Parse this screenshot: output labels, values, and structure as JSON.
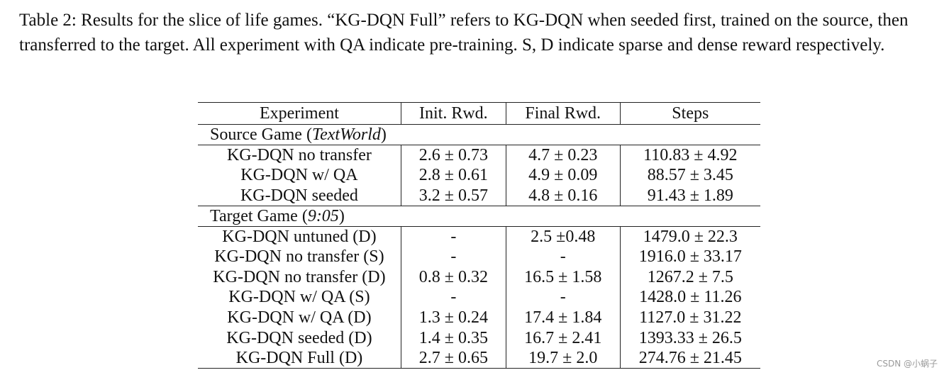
{
  "caption": "Table 2: Results for the slice of life games. “KG-DQN Full” refers to KG-DQN when seeded first, trained on the source, then transferred to the target. All experiment with QA indicate pre-training. S, D indicate sparse and dense reward respectively.",
  "table": {
    "headers": [
      "Experiment",
      "Init. Rwd.",
      "Final Rwd.",
      "Steps"
    ],
    "sections": [
      {
        "title_prefix": "Source Game (",
        "title_italic": "TextWorld",
        "title_suffix": ")",
        "rows": [
          [
            "KG-DQN no transfer",
            "2.6 ± 0.73",
            "4.7 ± 0.23",
            "110.83 ± 4.92"
          ],
          [
            "KG-DQN w/ QA",
            "2.8 ± 0.61",
            "4.9 ± 0.09",
            "88.57 ± 3.45"
          ],
          [
            "KG-DQN seeded",
            "3.2 ± 0.57",
            "4.8 ± 0.16",
            "91.43 ± 1.89"
          ]
        ]
      },
      {
        "title_prefix": "Target Game (",
        "title_italic": "9:05",
        "title_suffix": ")",
        "rows": [
          [
            "KG-DQN untuned (D)",
            "-",
            "2.5 ±0.48",
            "1479.0 ± 22.3"
          ],
          [
            "KG-DQN no transfer (S)",
            "-",
            "-",
            "1916.0 ± 33.17"
          ],
          [
            "KG-DQN no transfer (D)",
            "0.8 ± 0.32",
            "16.5 ± 1.58",
            "1267.2 ± 7.5"
          ],
          [
            "KG-DQN w/ QA (S)",
            "-",
            "-",
            "1428.0 ± 11.26"
          ],
          [
            "KG-DQN w/ QA (D)",
            "1.3 ± 0.24",
            "17.4 ± 1.84",
            "1127.0 ± 31.22"
          ],
          [
            "KG-DQN seeded (D)",
            "1.4 ± 0.35",
            "16.7 ± 2.41",
            "1393.33 ± 26.5"
          ],
          [
            "KG-DQN Full (D)",
            "2.7 ± 0.65",
            "19.7 ± 2.0",
            "274.76 ± 21.45"
          ]
        ]
      }
    ]
  },
  "watermark": "CSDN @小蜗子"
}
